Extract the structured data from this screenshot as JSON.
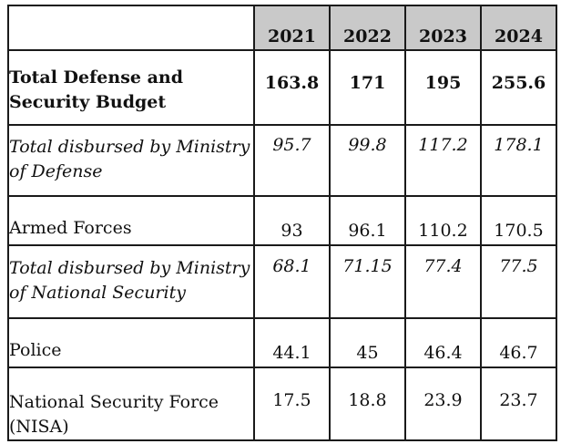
{
  "table": {
    "years": [
      "2021",
      "2022",
      "2023",
      "2024"
    ],
    "rows": [
      {
        "label": "Total Defense and Security Budget",
        "values": [
          "163.8",
          "171",
          "195",
          "255.6"
        ]
      },
      {
        "label": "Total disbursed by Ministry of Defense",
        "values": [
          "95.7",
          "99.8",
          "117.2",
          "178.1"
        ]
      },
      {
        "label": "Armed Forces",
        "values": [
          "93",
          "96.1",
          "110.2",
          "170.5"
        ]
      },
      {
        "label": "Total disbursed by Ministry of National Security",
        "values": [
          "68.1",
          "71.15",
          "77.4",
          "77.5"
        ]
      },
      {
        "label": "Police",
        "values": [
          "44.1",
          "45",
          "46.4",
          "46.7"
        ]
      },
      {
        "label": "National Security Force (NISA)",
        "values": [
          "17.5",
          "18.8",
          "23.9",
          "23.7"
        ]
      }
    ]
  }
}
